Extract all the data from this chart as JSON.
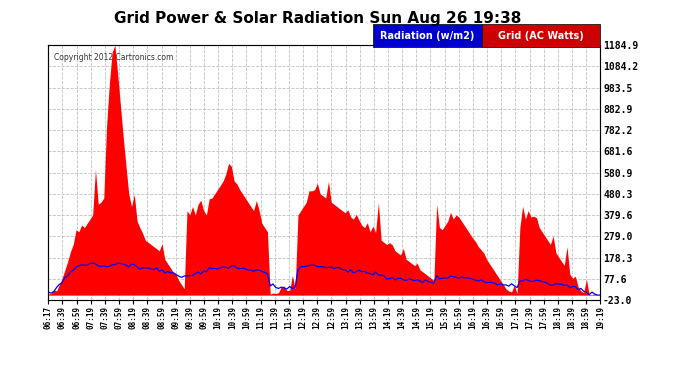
{
  "title": "Grid Power & Solar Radiation Sun Aug 26 19:38",
  "copyright": "Copyright 2012 Cartronics.com",
  "legend_radiation": "Radiation (w/m2)",
  "legend_grid": "Grid (AC Watts)",
  "y_ticks": [
    1184.9,
    1084.2,
    983.5,
    882.9,
    782.2,
    681.6,
    580.9,
    480.3,
    379.6,
    279.0,
    178.3,
    77.6,
    -23.0
  ],
  "y_min": -23.0,
  "y_max": 1184.9,
  "bg_color": "#ffffff",
  "plot_bg_color": "#ffffff",
  "grid_color": "#bbbbbb",
  "red_color": "#ff0000",
  "blue_color": "#0000ff",
  "rad_legend_bg": "#0000cc",
  "grid_legend_bg": "#cc0000",
  "x_labels": [
    "06:17",
    "06:39",
    "06:59",
    "07:19",
    "07:39",
    "07:59",
    "08:19",
    "08:39",
    "08:59",
    "09:19",
    "09:39",
    "09:59",
    "10:19",
    "10:39",
    "10:59",
    "11:19",
    "11:39",
    "11:59",
    "12:19",
    "12:39",
    "12:59",
    "13:19",
    "13:39",
    "13:59",
    "14:19",
    "14:39",
    "14:59",
    "15:19",
    "15:39",
    "15:59",
    "16:19",
    "16:39",
    "16:59",
    "17:19",
    "17:39",
    "17:59",
    "18:19",
    "18:39",
    "18:59",
    "19:19"
  ],
  "n_points": 200,
  "grid_profile": [
    5,
    8,
    12,
    20,
    50,
    80,
    120,
    160,
    200,
    240,
    280,
    300,
    310,
    320,
    340,
    360,
    380,
    400,
    420,
    440,
    460,
    800,
    1000,
    1150,
    1184,
    1050,
    900,
    750,
    600,
    480,
    420,
    380,
    350,
    320,
    290,
    260,
    250,
    240,
    230,
    220,
    210,
    190,
    170,
    150,
    130,
    110,
    90,
    70,
    50,
    30,
    400,
    380,
    420,
    380,
    430,
    450,
    400,
    380,
    420,
    460,
    480,
    500,
    520,
    540,
    560,
    580,
    560,
    540,
    520,
    500,
    480,
    460,
    440,
    420,
    400,
    380,
    360,
    340,
    320,
    300,
    5,
    10,
    8,
    12,
    15,
    20,
    18,
    22,
    25,
    30,
    380,
    400,
    420,
    440,
    460,
    480,
    500,
    490,
    480,
    470,
    460,
    450,
    440,
    430,
    420,
    410,
    400,
    390,
    380,
    370,
    360,
    350,
    340,
    330,
    320,
    310,
    300,
    290,
    280,
    270,
    260,
    250,
    240,
    230,
    220,
    210,
    200,
    190,
    180,
    170,
    160,
    150,
    140,
    130,
    120,
    110,
    100,
    90,
    80,
    70,
    300,
    320,
    310,
    330,
    350,
    340,
    360,
    380,
    370,
    350,
    330,
    310,
    290,
    270,
    250,
    230,
    210,
    190,
    170,
    150,
    130,
    110,
    90,
    70,
    50,
    30,
    20,
    15,
    10,
    8,
    320,
    340,
    360,
    350,
    370,
    360,
    340,
    320,
    300,
    280,
    260,
    240,
    220,
    200,
    180,
    160,
    140,
    120,
    100,
    80,
    60,
    40,
    20,
    10,
    5,
    3,
    2,
    1,
    0,
    0
  ],
  "radiation_profile": [
    5,
    10,
    20,
    35,
    50,
    65,
    80,
    95,
    110,
    120,
    130,
    135,
    140,
    145,
    148,
    150,
    148,
    145,
    143,
    140,
    138,
    140,
    145,
    150,
    152,
    154,
    150,
    148,
    145,
    142,
    140,
    138,
    135,
    132,
    130,
    128,
    125,
    122,
    120,
    118,
    115,
    112,
    110,
    108,
    105,
    102,
    100,
    98,
    95,
    92,
    90,
    92,
    95,
    100,
    105,
    110,
    115,
    118,
    120,
    122,
    125,
    128,
    130,
    132,
    135,
    137,
    138,
    137,
    135,
    133,
    130,
    128,
    125,
    122,
    120,
    118,
    115,
    112,
    110,
    108,
    50,
    45,
    40,
    38,
    36,
    35,
    33,
    32,
    30,
    28,
    130,
    132,
    134,
    136,
    138,
    140,
    142,
    140,
    138,
    136,
    134,
    132,
    130,
    128,
    126,
    124,
    122,
    120,
    118,
    116,
    114,
    112,
    110,
    108,
    106,
    104,
    102,
    100,
    98,
    96,
    94,
    92,
    90,
    88,
    86,
    84,
    82,
    80,
    78,
    76,
    74,
    72,
    70,
    68,
    66,
    64,
    62,
    60,
    58,
    56,
    80,
    82,
    84,
    86,
    88,
    90,
    88,
    86,
    84,
    82,
    80,
    78,
    76,
    74,
    72,
    70,
    68,
    66,
    64,
    62,
    60,
    58,
    56,
    54,
    52,
    50,
    48,
    46,
    44,
    42,
    70,
    72,
    74,
    72,
    70,
    68,
    66,
    64,
    62,
    60,
    58,
    56,
    54,
    52,
    50,
    48,
    46,
    44,
    42,
    40,
    35,
    30,
    25,
    20,
    15,
    10,
    8,
    5,
    3,
    0
  ]
}
